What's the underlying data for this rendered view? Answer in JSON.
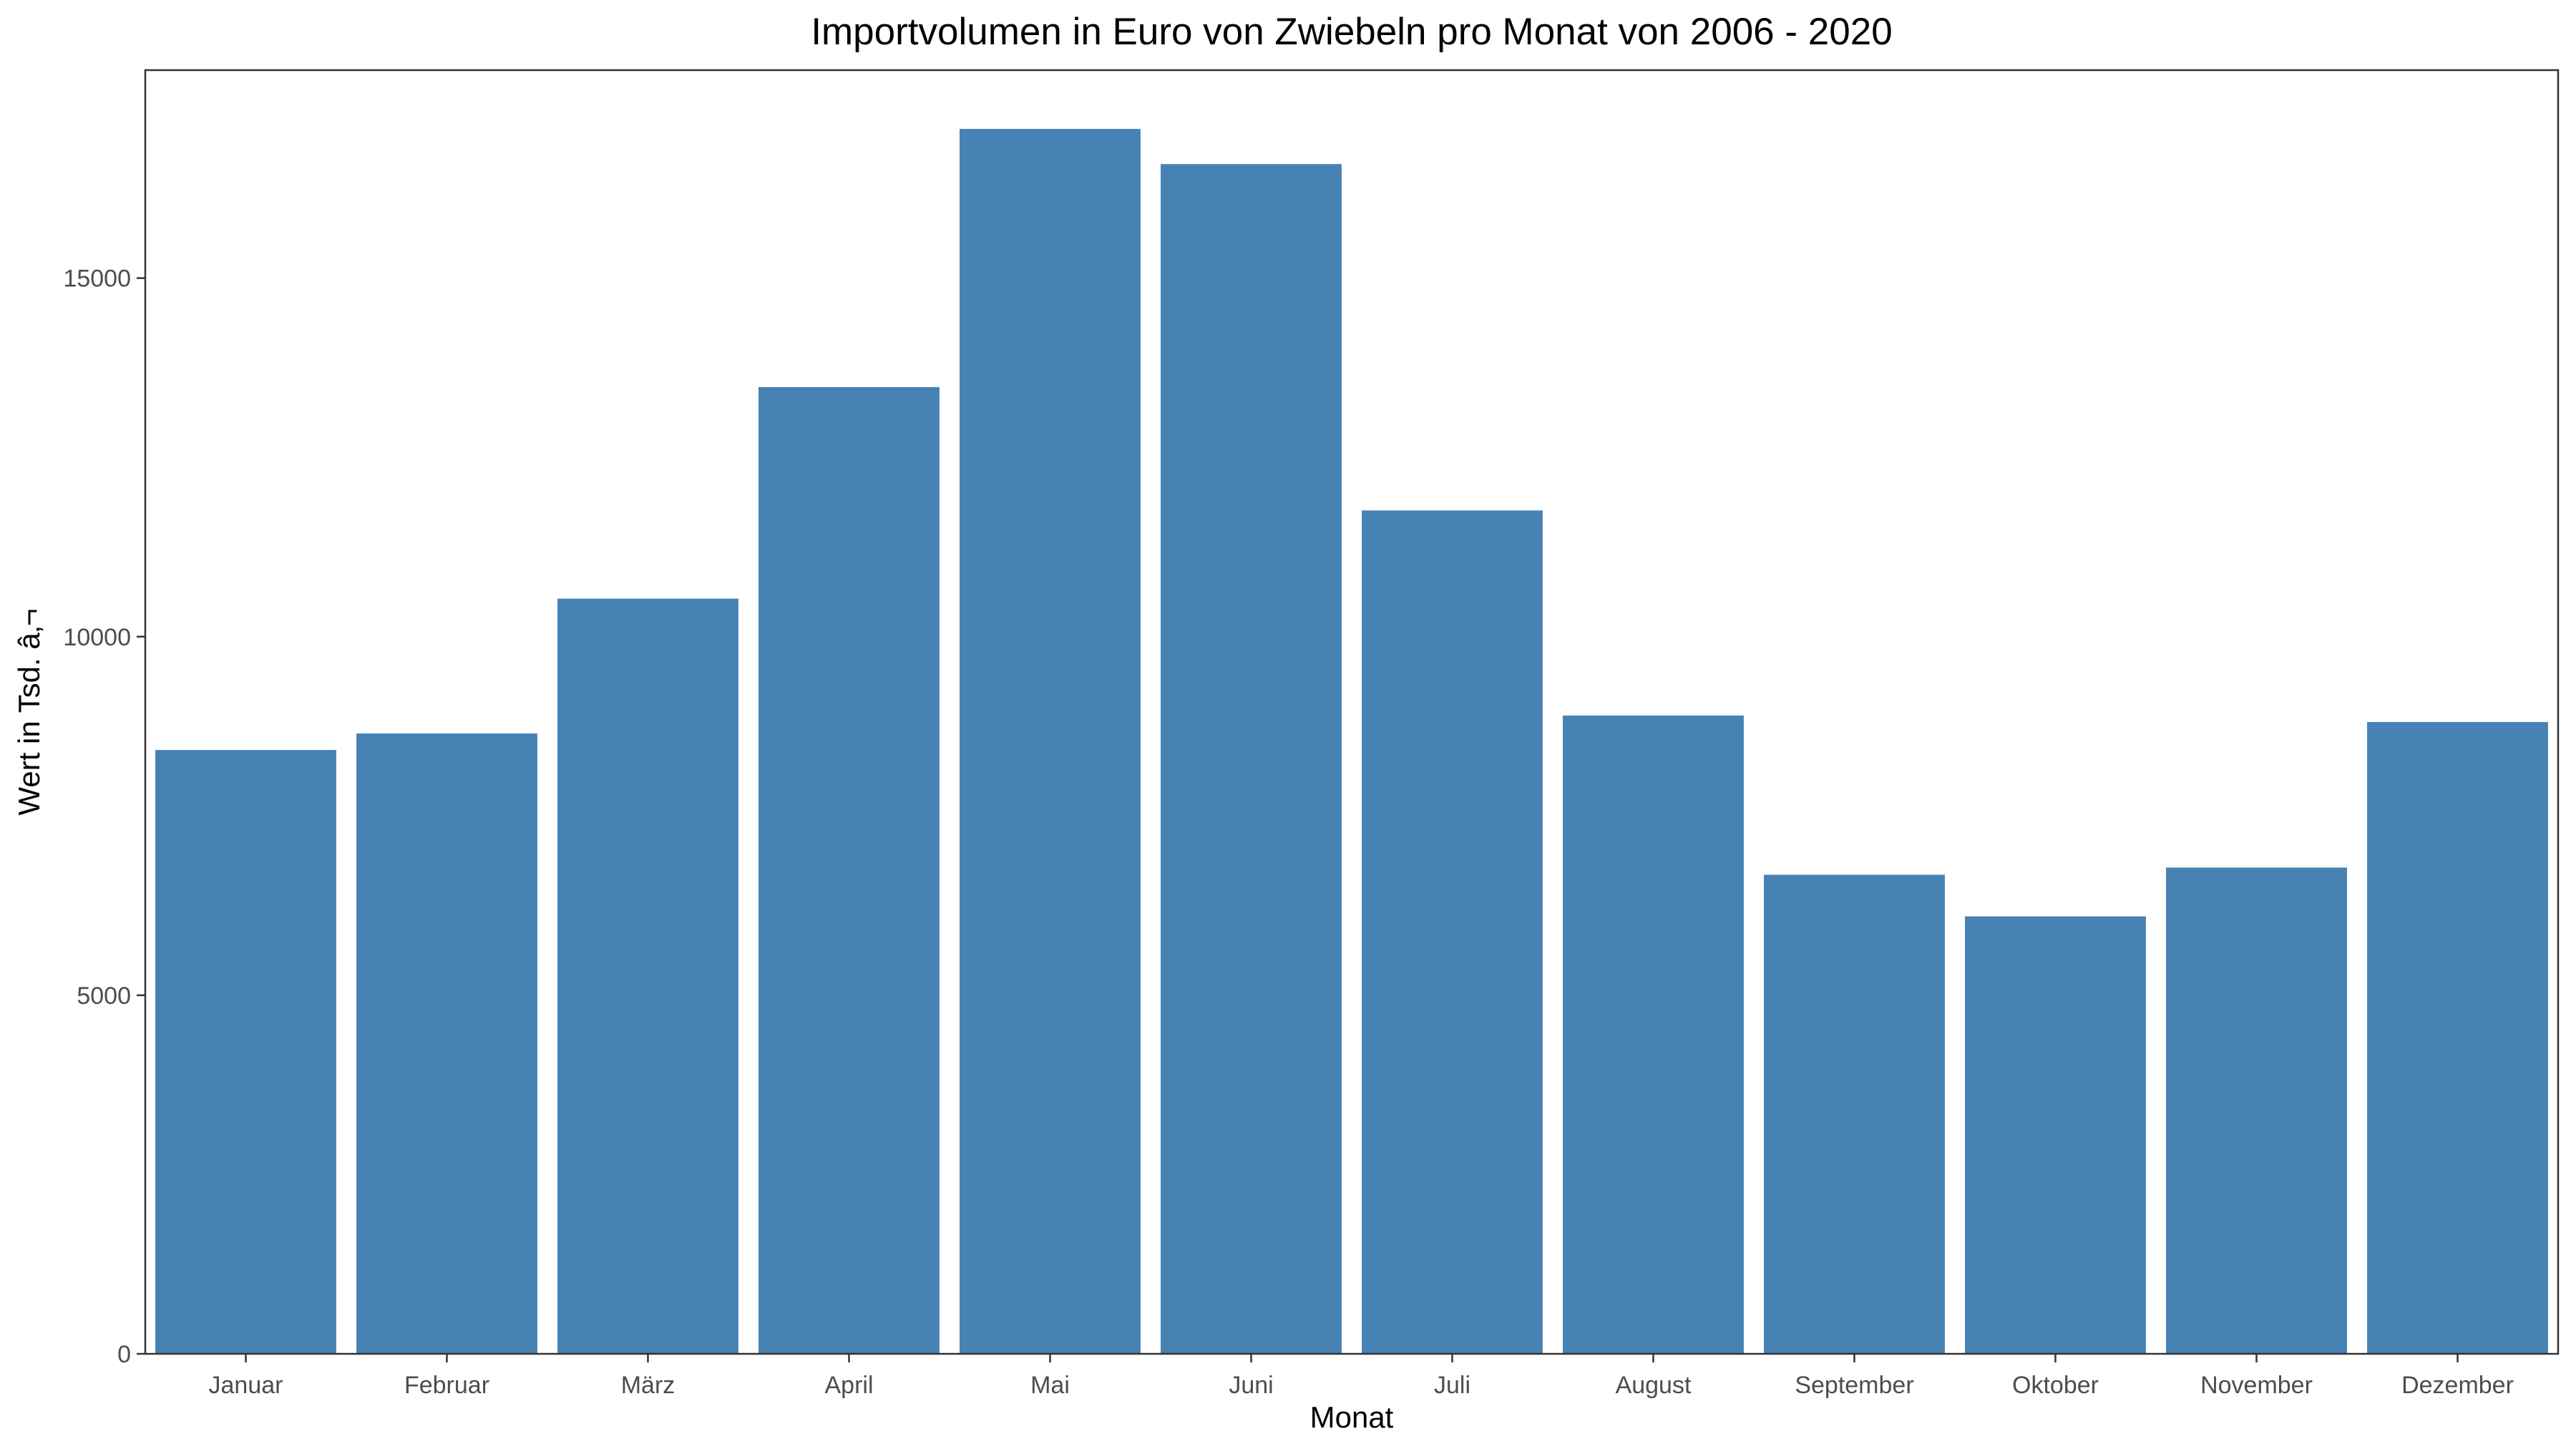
{
  "chart_data": {
    "type": "bar",
    "title": "Importvolumen in Euro von Zwiebeln pro Monat von 2006 - 2020",
    "xlabel": "Monat",
    "ylabel": "Wert in Tsd. â‚¬",
    "categories": [
      "Januar",
      "Februar",
      "März",
      "April",
      "Mai",
      "Juni",
      "Juli",
      "August",
      "September",
      "Oktober",
      "November",
      "Dezember"
    ],
    "values": [
      8420,
      8650,
      10530,
      13480,
      17080,
      16590,
      11760,
      8900,
      6680,
      6100,
      6780,
      8810
    ],
    "ylim": [
      0,
      17900
    ],
    "yticks": [
      "0",
      "5000",
      "10000",
      "15000"
    ],
    "grid": false,
    "legend": "none",
    "bar_color": "#4682B4",
    "panel_border_color": "#333333"
  }
}
